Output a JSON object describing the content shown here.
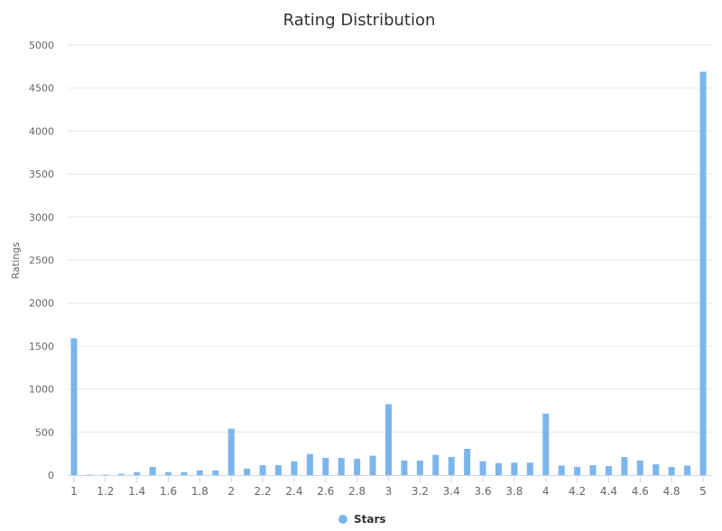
{
  "chart_data": {
    "type": "bar",
    "title": "Rating Distribution",
    "ylabel": "Ratings",
    "xlabel": "",
    "xlim": [
      1,
      5
    ],
    "ylim": [
      0,
      5000
    ],
    "yticks": [
      0,
      500,
      1000,
      1500,
      2000,
      2500,
      3000,
      3500,
      4000,
      4500,
      5000
    ],
    "xticks": [
      1,
      1.2,
      1.4,
      1.6,
      1.8,
      2,
      2.2,
      2.4,
      2.6,
      2.8,
      3,
      3.2,
      3.4,
      3.6,
      3.8,
      4,
      4.2,
      4.4,
      4.6,
      4.8,
      5
    ],
    "grid": true,
    "legend_position": "bottom-center",
    "series": [
      {
        "name": "Stars",
        "color": "#7cb5ec",
        "x": [
          1,
          1.1,
          1.2,
          1.3,
          1.4,
          1.5,
          1.6,
          1.7,
          1.8,
          1.9,
          2,
          2.1,
          2.2,
          2.3,
          2.4,
          2.5,
          2.6,
          2.7,
          2.8,
          2.9,
          3,
          3.1,
          3.2,
          3.3,
          3.4,
          3.5,
          3.6,
          3.7,
          3.8,
          3.9,
          4,
          4.1,
          4.2,
          4.3,
          4.4,
          4.5,
          4.6,
          4.7,
          4.8,
          4.9,
          5
        ],
        "values": [
          1590,
          5,
          5,
          15,
          35,
          95,
          35,
          35,
          55,
          55,
          540,
          75,
          115,
          115,
          160,
          245,
          200,
          200,
          190,
          225,
          825,
          170,
          170,
          235,
          210,
          305,
          160,
          140,
          145,
          145,
          715,
          110,
          95,
          115,
          105,
          210,
          170,
          125,
          95,
          110,
          4690
        ]
      }
    ]
  }
}
